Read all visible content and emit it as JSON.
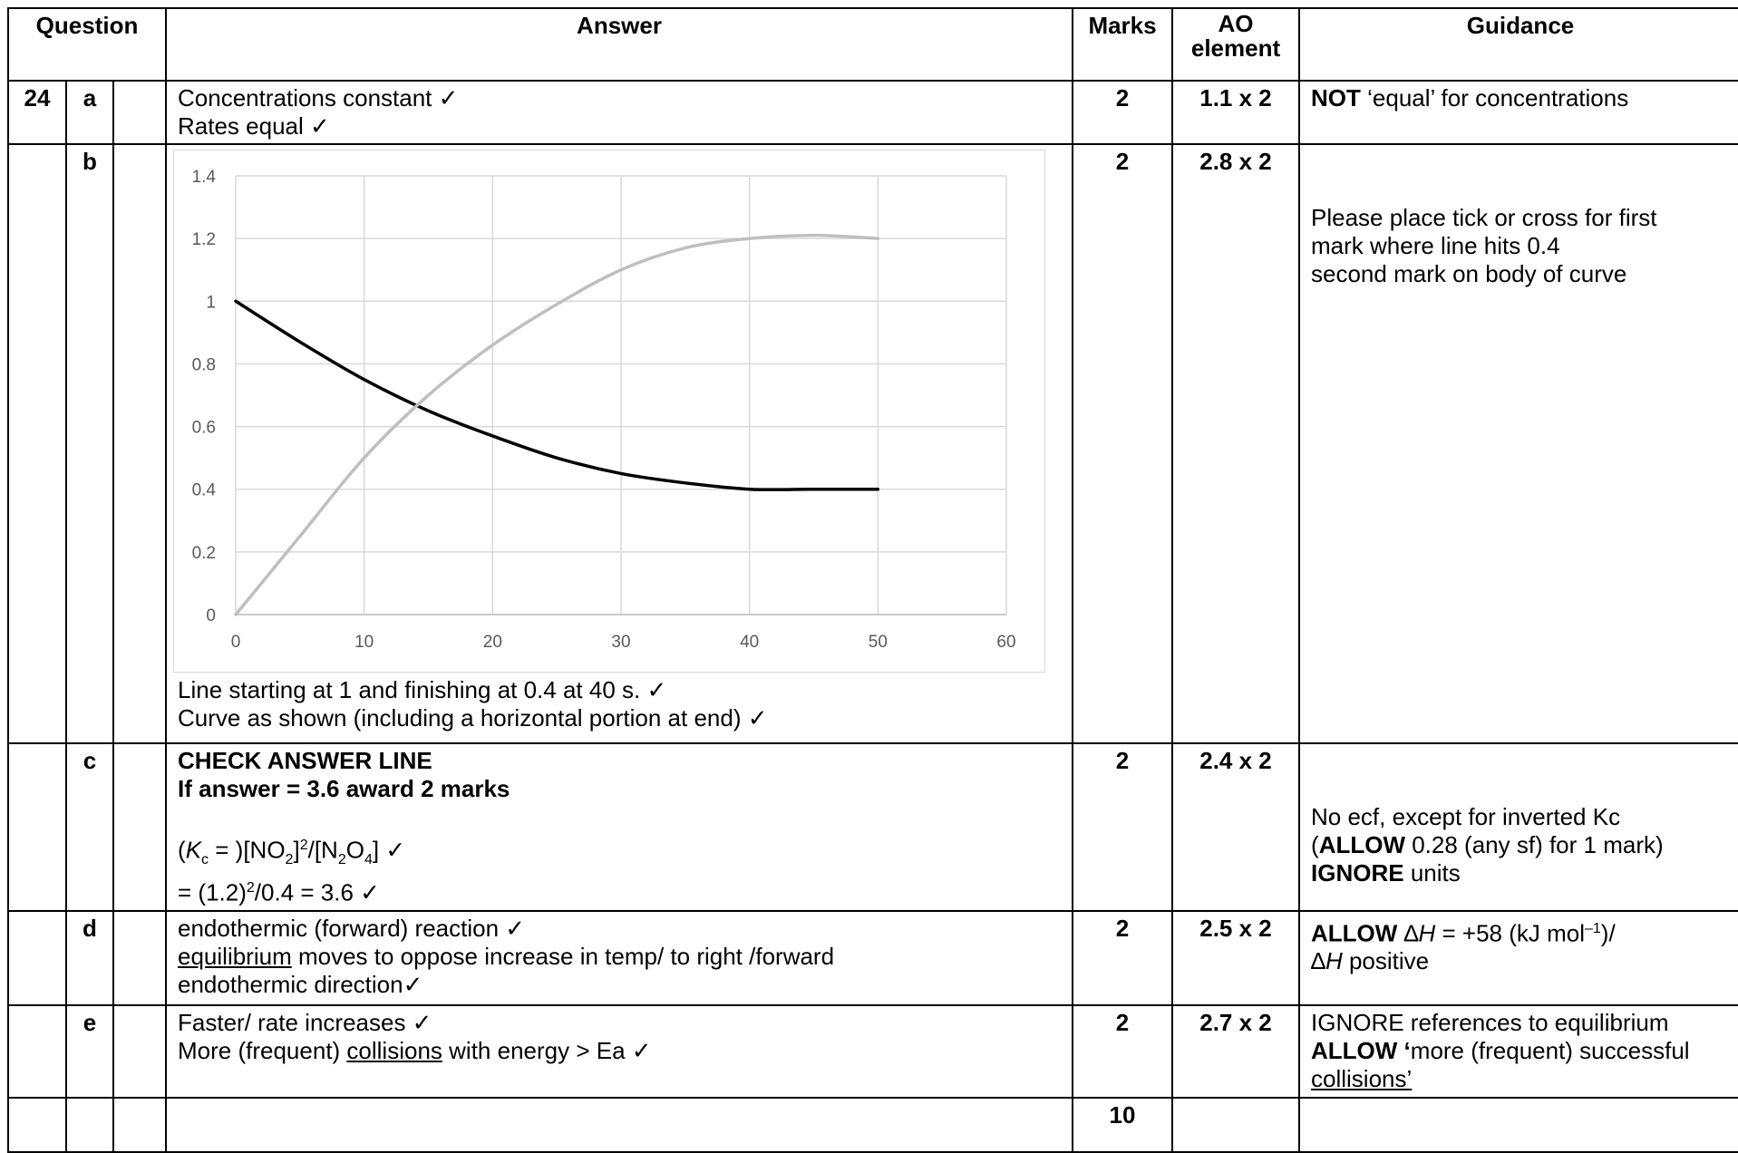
{
  "headers": {
    "question": "Question",
    "answer": "Answer",
    "marks": "Marks",
    "ao_line1": "AO",
    "ao_line2": "element",
    "guidance": "Guidance"
  },
  "rows": {
    "a": {
      "num": "24",
      "part": "a",
      "answer": [
        "Concentrations constant ✓",
        "Rates equal ✓"
      ],
      "marks": "2",
      "ao": "1.1 x 2",
      "guidance": {
        "bold": "NOT",
        "rest": " ‘equal’ for concentrations"
      }
    },
    "b": {
      "part": "b",
      "answer": [
        "Line starting at 1 and finishing at 0.4 at 40 s. ✓",
        "Curve as shown (including a horizontal portion at end) ✓"
      ],
      "marks": "2",
      "ao": "2.8 x 2",
      "guidance": [
        "Please place tick or cross for first",
        "mark where line hits 0.4",
        "second mark on body of curve"
      ]
    },
    "c": {
      "part": "c",
      "answer_bold": [
        "CHECK ANSWER LINE",
        "If answer = 3.6 award 2 marks"
      ],
      "eq1": {
        "open": "(",
        "k": "K",
        "sub": "c",
        "rest": " = )[NO",
        "no2sub": "2",
        "mid": "]",
        "sq": "2",
        "slash": "/[N",
        "n2sub": "2",
        "o": "O",
        "o4sub": "4",
        "end": "] ✓"
      },
      "eq2": {
        "pre": "= (1.2)",
        "sq": "2",
        "post": "/0.4 = 3.6 ✓"
      },
      "marks": "2",
      "ao": "2.4 x 2",
      "guidance": {
        "line1": "No ecf, except for inverted Kc",
        "l2_open": "(",
        "l2_bold": "ALLOW",
        "l2_rest": " 0.28 (any sf) for 1 mark)",
        "l3_bold": "IGNORE",
        "l3_rest": " units"
      }
    },
    "d": {
      "part": "d",
      "line1": "endothermic (forward) reaction ✓",
      "line2_u": "equilibrium",
      "line2_rest": " moves to oppose increase in temp/ to right /forward",
      "line3": "endothermic direction✓",
      "marks": "2",
      "ao": "2.5 x 2",
      "guidance": {
        "bold": "ALLOW",
        "delta": "∆",
        "h": "H",
        "rest1": " = +58 (kJ mol",
        "sup": "–1",
        "rest2": ")/",
        "rest3": " positive"
      }
    },
    "e": {
      "part": "e",
      "line1": "Faster/ rate increases ✓",
      "line2_pre": "More (frequent) ",
      "line2_u": "collisions",
      "line2_post": " with energy > Ea ✓",
      "marks": "2",
      "ao": "2.7 x 2",
      "guidance": {
        "line1": "IGNORE references to equilibrium",
        "l2_bold": "ALLOW ‘",
        "l2_rest": "more (frequent) successful",
        "l3_u": "collisions’"
      }
    },
    "total": {
      "marks": "10"
    }
  },
  "chart_data": {
    "type": "line",
    "xlim": [
      0,
      60
    ],
    "ylim": [
      0,
      1.4
    ],
    "x_ticks": [
      "0",
      "10",
      "20",
      "30",
      "40",
      "50",
      "60"
    ],
    "y_ticks": [
      "0",
      "0.2",
      "0.4",
      "0.6",
      "0.8",
      "1",
      "1.2",
      "1.4"
    ],
    "grid": true,
    "series": [
      {
        "color": "#000000",
        "x": [
          0,
          5,
          10,
          15,
          20,
          25,
          30,
          35,
          40,
          45,
          50
        ],
        "y": [
          1.0,
          0.87,
          0.75,
          0.65,
          0.57,
          0.5,
          0.45,
          0.42,
          0.4,
          0.4,
          0.4
        ]
      },
      {
        "color": "#bfbfbf",
        "x": [
          0,
          5,
          10,
          15,
          20,
          25,
          30,
          35,
          40,
          45,
          50
        ],
        "y": [
          0.0,
          0.25,
          0.5,
          0.7,
          0.86,
          0.99,
          1.1,
          1.17,
          1.2,
          1.21,
          1.2
        ]
      }
    ]
  }
}
